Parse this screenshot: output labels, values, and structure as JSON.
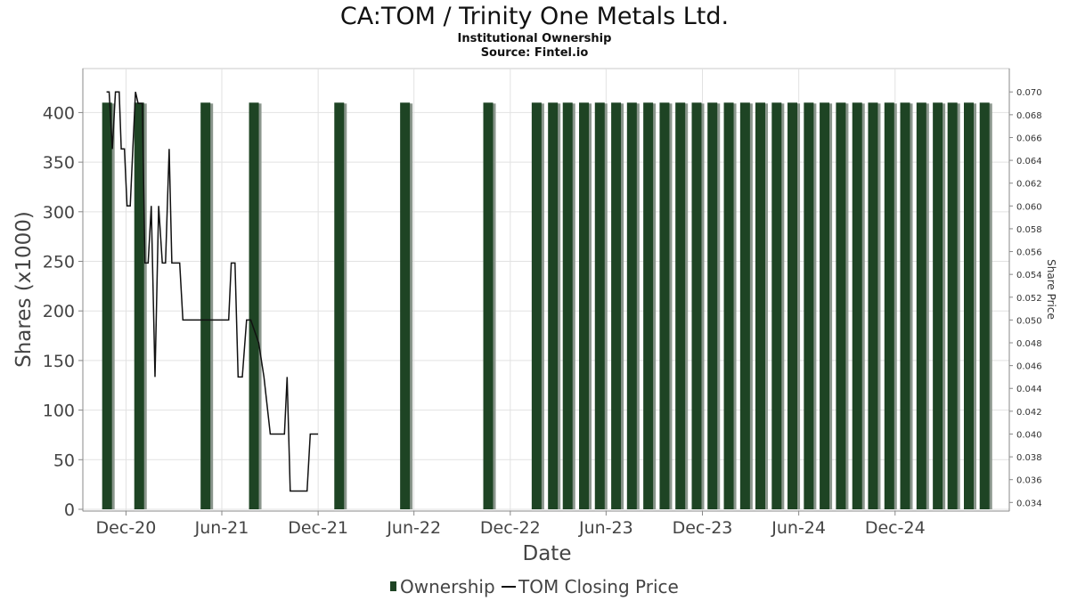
{
  "header": {
    "title": "CA:TOM / Trinity One Metals Ltd.",
    "subtitle": "Institutional Ownership",
    "source": "Source: Fintel.io"
  },
  "legend": {
    "ownership_label": "Ownership",
    "price_label": "TOM Closing Price"
  },
  "colors": {
    "bar": "#1e4424",
    "bar_shadow": "#8a968c",
    "price_line": "#111111",
    "grid": "#e2e2e2",
    "axis": "#888888"
  },
  "chart_data": {
    "type": "bar",
    "title": "CA:TOM / Trinity One Metals Ltd.",
    "subtitle": "Institutional Ownership",
    "xlabel": "Date",
    "ylabel": "Shares (x1000)",
    "y2label": "Share Price",
    "ylim": [
      0,
      430
    ],
    "y2lim": [
      0.0334,
      0.0708
    ],
    "xlim": [
      "2020-09-10",
      "2025-07-06"
    ],
    "yticks": [
      0,
      50,
      100,
      150,
      200,
      250,
      300,
      350,
      400
    ],
    "y2ticks": [
      "0.034",
      "0.036",
      "0.038",
      "0.040",
      "0.042",
      "0.044",
      "0.046",
      "0.048",
      "0.050",
      "0.052",
      "0.054",
      "0.056",
      "0.058",
      "0.060",
      "0.062",
      "0.064",
      "0.066",
      "0.068",
      "0.070"
    ],
    "xticks": [
      {
        "date": "2020-12-01",
        "label": "Dec-20"
      },
      {
        "date": "2021-06-01",
        "label": "Jun-21"
      },
      {
        "date": "2021-12-01",
        "label": "Dec-21"
      },
      {
        "date": "2022-06-01",
        "label": "Jun-22"
      },
      {
        "date": "2022-12-01",
        "label": "Dec-22"
      },
      {
        "date": "2023-06-01",
        "label": "Jun-23"
      },
      {
        "date": "2023-12-01",
        "label": "Dec-23"
      },
      {
        "date": "2024-06-01",
        "label": "Jun-24"
      },
      {
        "date": "2024-12-01",
        "label": "Dec-24"
      }
    ],
    "grid": true,
    "legend_position": "bottom",
    "series": [
      {
        "name": "Ownership",
        "type": "bar",
        "axis": "left",
        "points": [
          {
            "date": "2020-10-26",
            "value": 410
          },
          {
            "date": "2020-12-26",
            "value": 410
          },
          {
            "date": "2021-05-01",
            "value": 410
          },
          {
            "date": "2021-08-01",
            "value": 410
          },
          {
            "date": "2022-01-10",
            "value": 410
          },
          {
            "date": "2022-05-15",
            "value": 410
          },
          {
            "date": "2022-10-20",
            "value": 410
          },
          {
            "date": "2023-01-20",
            "value": 410
          },
          {
            "date": "2023-02-20",
            "value": 410
          },
          {
            "date": "2023-03-20",
            "value": 410
          },
          {
            "date": "2023-04-20",
            "value": 410
          },
          {
            "date": "2023-05-20",
            "value": 410
          },
          {
            "date": "2023-06-20",
            "value": 410
          },
          {
            "date": "2023-07-20",
            "value": 410
          },
          {
            "date": "2023-08-20",
            "value": 410
          },
          {
            "date": "2023-09-20",
            "value": 410
          },
          {
            "date": "2023-10-20",
            "value": 410
          },
          {
            "date": "2023-11-20",
            "value": 410
          },
          {
            "date": "2023-12-20",
            "value": 410
          },
          {
            "date": "2024-01-20",
            "value": 410
          },
          {
            "date": "2024-02-20",
            "value": 410
          },
          {
            "date": "2024-03-20",
            "value": 410
          },
          {
            "date": "2024-04-20",
            "value": 410
          },
          {
            "date": "2024-05-20",
            "value": 410
          },
          {
            "date": "2024-06-20",
            "value": 410
          },
          {
            "date": "2024-07-20",
            "value": 410
          },
          {
            "date": "2024-08-20",
            "value": 410
          },
          {
            "date": "2024-09-20",
            "value": 410
          },
          {
            "date": "2024-10-20",
            "value": 410
          },
          {
            "date": "2024-11-20",
            "value": 410
          },
          {
            "date": "2024-12-20",
            "value": 410
          },
          {
            "date": "2025-01-20",
            "value": 410
          },
          {
            "date": "2025-02-20",
            "value": 410
          },
          {
            "date": "2025-03-20",
            "value": 410
          },
          {
            "date": "2025-04-20",
            "value": 410
          },
          {
            "date": "2025-05-20",
            "value": 410
          }
        ]
      },
      {
        "name": "TOM Closing Price",
        "type": "line",
        "axis": "right",
        "points": [
          {
            "date": "2020-10-25",
            "value": 0.07
          },
          {
            "date": "2020-10-30",
            "value": 0.07
          },
          {
            "date": "2020-11-05",
            "value": 0.065
          },
          {
            "date": "2020-11-11",
            "value": 0.07
          },
          {
            "date": "2020-11-18",
            "value": 0.07
          },
          {
            "date": "2020-11-22",
            "value": 0.065
          },
          {
            "date": "2020-11-28",
            "value": 0.065
          },
          {
            "date": "2020-12-03",
            "value": 0.06
          },
          {
            "date": "2020-12-09",
            "value": 0.06
          },
          {
            "date": "2020-12-14",
            "value": 0.065
          },
          {
            "date": "2020-12-19",
            "value": 0.07
          },
          {
            "date": "2020-12-24",
            "value": 0.069
          },
          {
            "date": "2021-01-01",
            "value": 0.069
          },
          {
            "date": "2021-01-06",
            "value": 0.055
          },
          {
            "date": "2021-01-12",
            "value": 0.055
          },
          {
            "date": "2021-01-18",
            "value": 0.06
          },
          {
            "date": "2021-01-25",
            "value": 0.045
          },
          {
            "date": "2021-02-01",
            "value": 0.06
          },
          {
            "date": "2021-02-08",
            "value": 0.055
          },
          {
            "date": "2021-02-14",
            "value": 0.055
          },
          {
            "date": "2021-02-21",
            "value": 0.065
          },
          {
            "date": "2021-02-26",
            "value": 0.055
          },
          {
            "date": "2021-03-04",
            "value": 0.055
          },
          {
            "date": "2021-03-13",
            "value": 0.055
          },
          {
            "date": "2021-03-19",
            "value": 0.05
          },
          {
            "date": "2021-04-05",
            "value": 0.05
          },
          {
            "date": "2021-05-01",
            "value": 0.05
          },
          {
            "date": "2021-06-05",
            "value": 0.05
          },
          {
            "date": "2021-06-14",
            "value": 0.05
          },
          {
            "date": "2021-06-19",
            "value": 0.055
          },
          {
            "date": "2021-06-26",
            "value": 0.055
          },
          {
            "date": "2021-07-02",
            "value": 0.045
          },
          {
            "date": "2021-07-10",
            "value": 0.045
          },
          {
            "date": "2021-07-18",
            "value": 0.05
          },
          {
            "date": "2021-07-26",
            "value": 0.05
          },
          {
            "date": "2021-08-10",
            "value": 0.048
          },
          {
            "date": "2021-08-20",
            "value": 0.045
          },
          {
            "date": "2021-09-01",
            "value": 0.04
          },
          {
            "date": "2021-09-15",
            "value": 0.04
          },
          {
            "date": "2021-09-28",
            "value": 0.04
          },
          {
            "date": "2021-10-03",
            "value": 0.045
          },
          {
            "date": "2021-10-09",
            "value": 0.035
          },
          {
            "date": "2021-10-25",
            "value": 0.035
          },
          {
            "date": "2021-11-10",
            "value": 0.035
          },
          {
            "date": "2021-11-16",
            "value": 0.04
          },
          {
            "date": "2021-12-01",
            "value": 0.04
          }
        ]
      }
    ]
  }
}
